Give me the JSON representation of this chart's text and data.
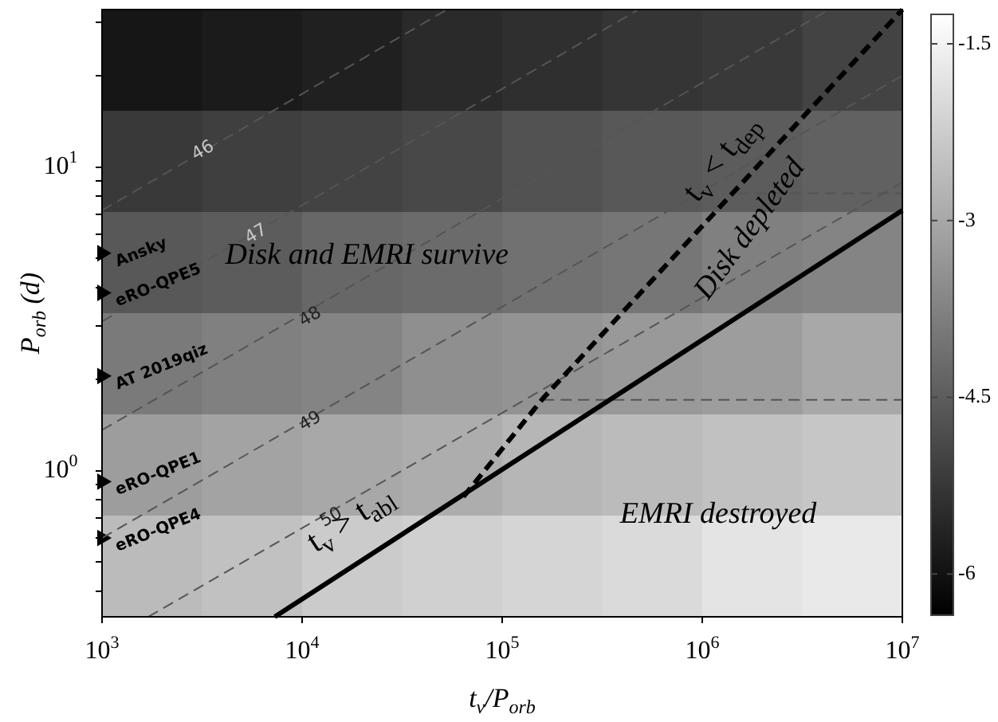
{
  "chart_data": {
    "type": "heatmap",
    "xlabel": "t$_{v}$/P$_{orb}$",
    "ylabel": "P$_{orb}$ (d)",
    "log": "xy",
    "xlim": [
      1000,
      10000000
    ],
    "ylim": [
      0.33,
      33
    ],
    "xticks": [
      {
        "value": 1000,
        "label": "10$^{3}$"
      },
      {
        "value": 10000,
        "label": "10$^{4}$"
      },
      {
        "value": 100000,
        "label": "10$^{5}$"
      },
      {
        "value": 1000000,
        "label": "10$^{6}$"
      },
      {
        "value": 10000000,
        "label": "10$^{7}$"
      }
    ],
    "yticks": [
      {
        "value": 0.4,
        "label": null
      },
      {
        "value": 0.5,
        "label": null
      },
      {
        "value": 0.6,
        "label": null
      },
      {
        "value": 0.7,
        "label": null
      },
      {
        "value": 0.8,
        "label": null
      },
      {
        "value": 0.9,
        "label": null
      },
      {
        "value": 1,
        "label": "10$^{0}$"
      },
      {
        "value": 2,
        "label": null
      },
      {
        "value": 3,
        "label": null
      },
      {
        "value": 4,
        "label": null
      },
      {
        "value": 5,
        "label": null
      },
      {
        "value": 6,
        "label": null
      },
      {
        "value": 7,
        "label": null
      },
      {
        "value": 8,
        "label": null
      },
      {
        "value": 9,
        "label": null
      },
      {
        "value": 10,
        "label": "10$^{1}$"
      },
      {
        "value": 20,
        "label": null
      },
      {
        "value": 30,
        "label": null
      }
    ],
    "legend": false,
    "cells": [
      [
        -5.9,
        -5.8,
        -5.7,
        -5.5,
        -5.4,
        -5.3,
        -5.2,
        -5.0
      ],
      [
        -5.2,
        -5.1,
        -5.0,
        -4.9,
        -4.7,
        -4.6,
        -4.5,
        -4.4
      ],
      [
        -4.6,
        -4.5,
        -4.3,
        -4.2,
        -4.1,
        -4.0,
        -3.8,
        -3.7
      ],
      [
        -3.9,
        -3.8,
        -3.7,
        -3.5,
        -3.4,
        -3.3,
        -3.2,
        -3.0
      ],
      [
        -3.2,
        -3.1,
        -3.0,
        -2.9,
        -2.7,
        -2.6,
        -2.5,
        -2.4
      ],
      [
        -2.6,
        -2.5,
        -2.3,
        -2.2,
        -2.1,
        -2.0,
        -1.8,
        -1.7
      ]
    ],
    "clim": [
      -6.35,
      -1.25
    ],
    "cticks": [
      -6,
      -4.5,
      -3,
      -1.5
    ],
    "series": [
      {
        "type": "line",
        "color": "#000000",
        "line_style": "solid",
        "x": [
          7300,
          10000000
        ],
        "values": [
          0.33,
          7.2
        ]
      },
      {
        "type": "line",
        "color": "#000000",
        "line_style": "dashed",
        "x": [
          64000,
          160000,
          10000000
        ],
        "values": [
          0.82,
          1.73,
          33
        ]
      },
      {
        "type": "line",
        "color": "#555555",
        "line_style": "dashed",
        "x": [
          1500000,
          10000000
        ],
        "values": [
          8.2,
          8.2
        ]
      },
      {
        "type": "line",
        "color": "#555555",
        "line_style": "dashed",
        "x": [
          160000,
          10000000
        ],
        "values": [
          1.71,
          1.71
        ]
      },
      {
        "type": "line",
        "color": "#555555",
        "line_style": "dashed",
        "x": [
          1000,
          53000
        ],
        "values": [
          7.2,
          33
        ]
      },
      {
        "type": "line",
        "color": "#555555",
        "line_style": "dashed",
        "x": [
          1000,
          480000
        ],
        "values": [
          3.1,
          33
        ]
      },
      {
        "type": "line",
        "color": "#555555",
        "line_style": "dashed",
        "x": [
          1000,
          4300000
        ],
        "values": [
          1.36,
          33
        ]
      },
      {
        "type": "line",
        "color": "#555555",
        "line_style": "dashed",
        "x": [
          1000,
          10000000
        ],
        "values": [
          0.6,
          20
        ]
      },
      {
        "type": "line",
        "color": "#555555",
        "line_style": "dashed",
        "x": [
          1700,
          10000000
        ],
        "values": [
          0.33,
          8.9
        ]
      },
      {
        "type": "scatter",
        "color": "#000000",
        "marker": "triangle",
        "x": [
          1000,
          1000,
          1000,
          1000,
          1000
        ],
        "values": [
          5.2,
          3.85,
          2.05,
          0.92,
          0.6
        ]
      }
    ],
    "annotations": [
      {
        "text": "46",
        "x": 3200,
        "y": 11.3
      },
      {
        "text": "47",
        "x": 5900,
        "y": 6.0
      },
      {
        "text": "48",
        "x": 11000,
        "y": 3.2
      },
      {
        "text": "49",
        "x": 11000,
        "y": 1.45
      },
      {
        "text": "50",
        "x": 14000,
        "y": 0.7
      },
      "Disk and EMRI survive",
      "t$_{v}$ < t$_{dep}$",
      "Disk depleted",
      "t$_{v}$ > t$_{abl}$",
      "EMRI destroyed",
      {
        "text": "Ansky",
        "x": 1000,
        "y": 5.2
      },
      {
        "text": "eRO-QPE5",
        "x": 1000,
        "y": 3.85
      },
      {
        "text": "AT 2019qiz",
        "x": 1000,
        "y": 2.05
      },
      {
        "text": "eRO-QPE1",
        "x": 1000,
        "y": 0.92
      },
      {
        "text": "eRO-QPE4",
        "x": 1000,
        "y": 0.6
      }
    ]
  }
}
